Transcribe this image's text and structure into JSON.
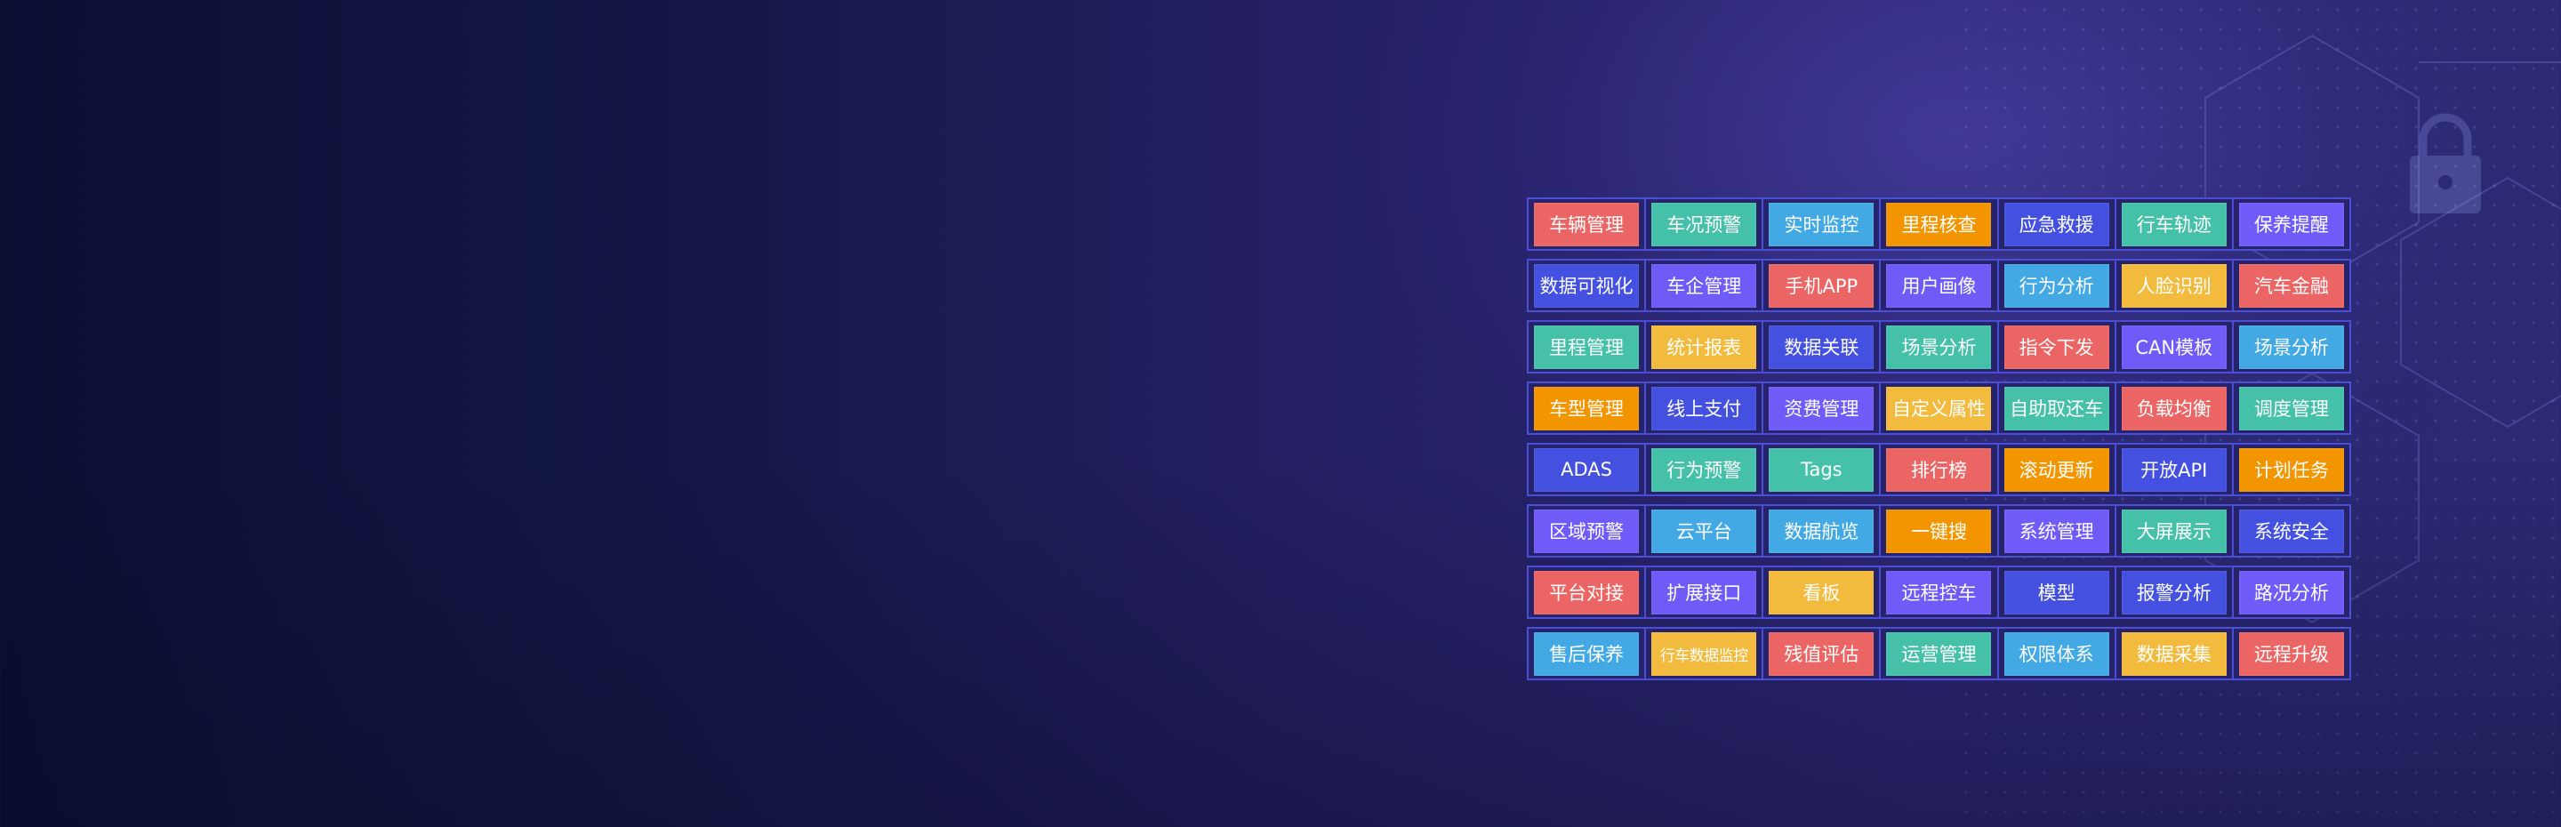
{
  "colors": {
    "red": "#ec6565",
    "teal": "#46c1a9",
    "blue": "#43a9e5",
    "orange": "#f29500",
    "indigo": "#4450e0",
    "purple": "#6f5bf8",
    "yellow": "#f2bb3d",
    "grid_border": "#4a4fd6",
    "cell_bg": "#26236a"
  },
  "decor_icons": [
    "lock-icon",
    "hexagon-network-pattern"
  ],
  "rows": [
    {
      "tiles": [
        {
          "label": "车辆管理",
          "color": "red"
        },
        {
          "label": "车况预警",
          "color": "teal"
        },
        {
          "label": "实时监控",
          "color": "blue"
        },
        {
          "label": "里程核查",
          "color": "orange"
        },
        {
          "label": "应急救援",
          "color": "indigo"
        },
        {
          "label": "行车轨迹",
          "color": "teal"
        },
        {
          "label": "保养提醒",
          "color": "purple"
        }
      ]
    },
    {
      "tiles": [
        {
          "label": "数据可视化",
          "color": "indigo"
        },
        {
          "label": "车企管理",
          "color": "purple"
        },
        {
          "label": "手机APP",
          "color": "red"
        },
        {
          "label": "用户画像",
          "color": "purple"
        },
        {
          "label": "行为分析",
          "color": "blue"
        },
        {
          "label": "人脸识别",
          "color": "yellow"
        },
        {
          "label": "汽车金融",
          "color": "red"
        }
      ]
    },
    {
      "tiles": [
        {
          "label": "里程管理",
          "color": "teal"
        },
        {
          "label": "统计报表",
          "color": "yellow"
        },
        {
          "label": "数据关联",
          "color": "indigo"
        },
        {
          "label": "场景分析",
          "color": "teal"
        },
        {
          "label": "指令下发",
          "color": "red"
        },
        {
          "label": "CAN模板",
          "color": "purple"
        },
        {
          "label": "场景分析",
          "color": "blue"
        }
      ]
    },
    {
      "tiles": [
        {
          "label": "车型管理",
          "color": "orange"
        },
        {
          "label": "线上支付",
          "color": "indigo"
        },
        {
          "label": "资费管理",
          "color": "purple"
        },
        {
          "label": "自定义属性",
          "color": "yellow"
        },
        {
          "label": "自助取还车",
          "color": "teal"
        },
        {
          "label": "负载均衡",
          "color": "red"
        },
        {
          "label": "调度管理",
          "color": "teal"
        }
      ]
    },
    {
      "tiles": [
        {
          "label": "ADAS",
          "color": "indigo"
        },
        {
          "label": "行为预警",
          "color": "teal"
        },
        {
          "label": "Tags",
          "color": "teal"
        },
        {
          "label": "排行榜",
          "color": "red"
        },
        {
          "label": "滚动更新",
          "color": "orange"
        },
        {
          "label": "开放API",
          "color": "indigo"
        },
        {
          "label": "计划任务",
          "color": "orange"
        }
      ]
    },
    {
      "tiles": [
        {
          "label": "区域预警",
          "color": "purple"
        },
        {
          "label": "云平台",
          "color": "blue"
        },
        {
          "label": "数据航览",
          "color": "blue"
        },
        {
          "label": "一键搜",
          "color": "orange"
        },
        {
          "label": "系统管理",
          "color": "purple"
        },
        {
          "label": "大屏展示",
          "color": "teal"
        },
        {
          "label": "系统安全",
          "color": "indigo"
        }
      ]
    },
    {
      "tiles": [
        {
          "label": "平台对接",
          "color": "red"
        },
        {
          "label": "扩展接口",
          "color": "purple"
        },
        {
          "label": "看板",
          "color": "yellow"
        },
        {
          "label": "远程控车",
          "color": "purple"
        },
        {
          "label": "模型",
          "color": "indigo"
        },
        {
          "label": "报警分析",
          "color": "indigo"
        },
        {
          "label": "路况分析",
          "color": "purple"
        }
      ]
    },
    {
      "tiles": [
        {
          "label": "售后保养",
          "color": "blue"
        },
        {
          "label": "行车数据监控",
          "color": "yellow"
        },
        {
          "label": "残值评估",
          "color": "red"
        },
        {
          "label": "运营管理",
          "color": "teal"
        },
        {
          "label": "权限体系",
          "color": "blue"
        },
        {
          "label": "数据采集",
          "color": "yellow"
        },
        {
          "label": "远程升级",
          "color": "red"
        }
      ]
    }
  ]
}
